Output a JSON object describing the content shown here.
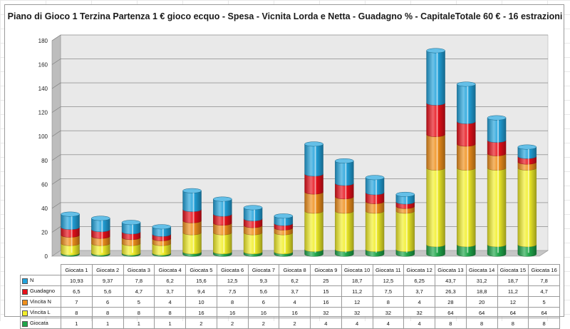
{
  "chart_data": {
    "type": "bar",
    "stacked": true,
    "title": "Piano di Gioco 1 Terzina  Partenza 1 € gioco ecquo - Spesa - Vicnita Lorda e Netta - Guadagno % - CapitaleTotale  60 € - 16 estrazioni",
    "categories": [
      "Giocata 1",
      "Giocata 2",
      "Giocata 3",
      "Giocata 4",
      "Giocata 5",
      "Giocata 6",
      "Giocata 7",
      "Giocata 8",
      "Giocata 9",
      "Giocata 10",
      "Giocata 11",
      "Giocata 12",
      "Giocata 13",
      "Giocata 14",
      "Giocata 15",
      "Giocata 16"
    ],
    "ylim": [
      0,
      180
    ],
    "yticks": [
      "0",
      "20",
      "40",
      "60",
      "80",
      "100",
      "120",
      "140",
      "160",
      "180"
    ],
    "grid": true,
    "legend": "table-bottom",
    "series": [
      {
        "name": "Giocata",
        "color": "#1fa64a",
        "values": [
          1,
          1,
          1,
          1,
          2,
          2,
          2,
          2,
          4,
          4,
          4,
          4,
          8,
          8,
          8,
          8
        ],
        "labels": [
          "1",
          "1",
          "1",
          "1",
          "2",
          "2",
          "2",
          "2",
          "4",
          "4",
          "4",
          "4",
          "8",
          "8",
          "8",
          "8"
        ]
      },
      {
        "name": "Vincita L",
        "color": "#f2ef2a",
        "values": [
          8,
          8,
          8,
          8,
          16,
          16,
          16,
          16,
          32,
          32,
          32,
          32,
          64,
          64,
          64,
          64
        ],
        "labels": [
          "8",
          "8",
          "8",
          "8",
          "16",
          "16",
          "16",
          "16",
          "32",
          "32",
          "32",
          "32",
          "64",
          "64",
          "64",
          "64"
        ]
      },
      {
        "name": "Vincita N",
        "color": "#f0901c",
        "values": [
          7,
          6,
          5,
          4,
          10,
          8,
          6,
          4,
          16,
          12,
          8,
          4,
          28,
          20,
          12,
          5
        ],
        "labels": [
          "7",
          "6",
          "5",
          "4",
          "10",
          "8",
          "6",
          "4",
          "16",
          "12",
          "8",
          "4",
          "28",
          "20",
          "12",
          "5"
        ]
      },
      {
        "name": "Guadagno",
        "color": "#e8101a",
        "values": [
          6.5,
          5.6,
          4.7,
          3.7,
          9.4,
          7.5,
          5.6,
          3.7,
          15,
          11.2,
          7.5,
          3.7,
          26.3,
          18.8,
          11.2,
          4.7
        ],
        "labels": [
          "6,5",
          "5,6",
          "4,7",
          "3,7",
          "9,4",
          "7,5",
          "5,6",
          "3,7",
          "15",
          "11,2",
          "7,5",
          "3,7",
          "26,3",
          "18,8",
          "11,2",
          "4,7"
        ]
      },
      {
        "name": "N",
        "color": "#22a3dc",
        "values": [
          10.93,
          9.37,
          7.8,
          6.2,
          15.6,
          12.5,
          9.3,
          6.2,
          25,
          18.7,
          12.5,
          6.25,
          43.7,
          31.2,
          18.7,
          7.8
        ],
        "labels": [
          "10,93",
          "9,37",
          "7,8",
          "6,2",
          "15,6",
          "12,5",
          "9,3",
          "6,2",
          "25",
          "18,7",
          "12,5",
          "6,25",
          "43,7",
          "31,2",
          "18,7",
          "7,8"
        ]
      }
    ]
  }
}
